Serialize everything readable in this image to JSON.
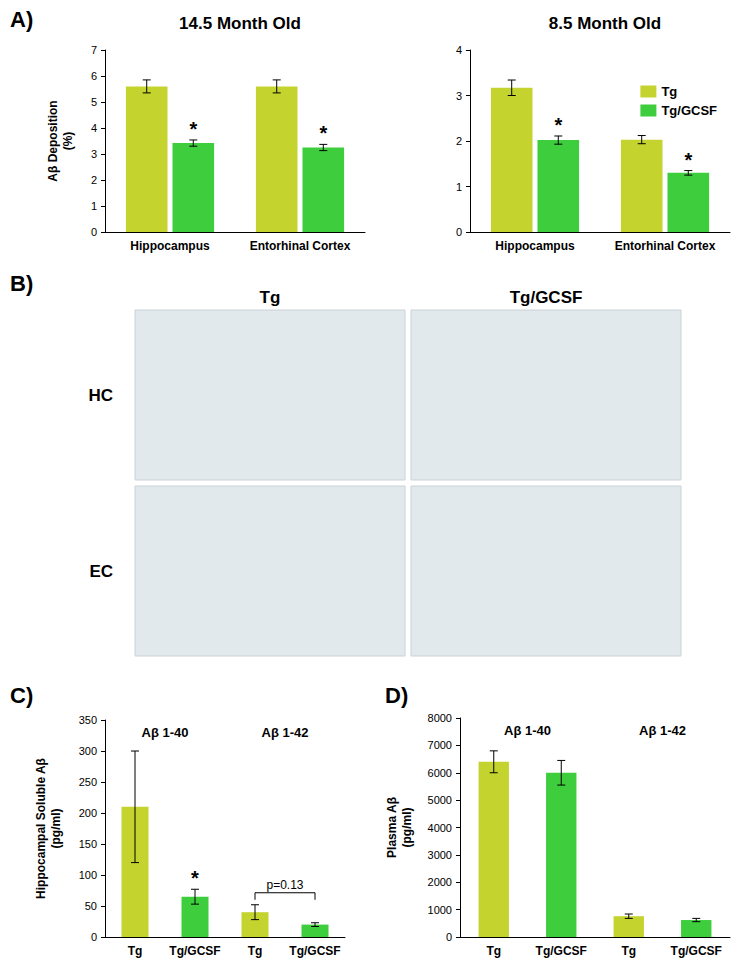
{
  "figure": {
    "panel_labels": [
      "A)",
      "B)",
      "C)",
      "D)"
    ],
    "panel_b": {
      "columns": [
        "Tg",
        "Tg/GCSF"
      ],
      "rows": [
        "HC",
        "EC"
      ]
    }
  },
  "chart_data": [
    {
      "type": "bar",
      "title": "14.5 Month Old",
      "y_label": "Aβ Deposition (%)",
      "categories": [
        "Hippocampus",
        "Entorhinal Cortex"
      ],
      "series": [
        {
          "name": "Tg",
          "color": "#c5d32e",
          "values": [
            5.6,
            5.6
          ],
          "errors": [
            0.25,
            0.25
          ]
        },
        {
          "name": "Tg/GCSF",
          "color": "#3dcd3d",
          "values": [
            3.42,
            3.25
          ],
          "errors": [
            0.12,
            0.12
          ]
        }
      ],
      "ylim": [
        0,
        7
      ],
      "yticks": [
        0,
        1,
        2,
        3,
        4,
        5,
        6,
        7
      ],
      "grid": false,
      "annotations": [
        {
          "text": "*",
          "series": "Tg/GCSF",
          "category": "Hippocampus"
        },
        {
          "text": "*",
          "series": "Tg/GCSF",
          "category": "Entorhinal Cortex"
        }
      ]
    },
    {
      "type": "bar",
      "title": "8.5 Month Old",
      "categories": [
        "Hippocampus",
        "Entorhinal Cortex"
      ],
      "series": [
        {
          "name": "Tg",
          "color": "#c5d32e",
          "values": [
            3.17,
            2.03
          ],
          "errors": [
            0.17,
            0.09
          ]
        },
        {
          "name": "Tg/GCSF",
          "color": "#3dcd3d",
          "values": [
            2.02,
            1.3
          ],
          "errors": [
            0.09,
            0.05
          ]
        }
      ],
      "ylim": [
        0,
        4
      ],
      "yticks": [
        0,
        1,
        2,
        3,
        4
      ],
      "grid": false,
      "legend": "upper right",
      "annotations": [
        {
          "text": "*",
          "series": "Tg/GCSF",
          "category": "Hippocampus"
        },
        {
          "text": "*",
          "series": "Tg/GCSF",
          "category": "Entorhinal Cortex"
        }
      ]
    },
    {
      "type": "bar",
      "y_label": "Hippocampal Soluble Aβ (pg/ml)",
      "categories": [
        "Tg",
        "Tg/GCSF",
        "Tg",
        "Tg/GCSF"
      ],
      "values": [
        210,
        65,
        40,
        20
      ],
      "errors": [
        90,
        12,
        12,
        3
      ],
      "colors": [
        "#c5d32e",
        "#3dcd3d",
        "#c5d32e",
        "#3dcd3d"
      ],
      "groups": [
        {
          "label": "Aβ 1-40",
          "from": 0,
          "to": 1
        },
        {
          "label": "Aβ 1-42",
          "from": 2,
          "to": 3
        }
      ],
      "ylim": [
        0,
        350
      ],
      "yticks": [
        0,
        50,
        100,
        150,
        200,
        250,
        300,
        350
      ],
      "grid": false,
      "annotations": [
        {
          "text": "*",
          "index": 1
        },
        {
          "text": "p=0.13",
          "from": 2,
          "to": 3
        }
      ]
    },
    {
      "type": "bar",
      "y_label": "Plasma Aβ (pg/ml)",
      "categories": [
        "Tg",
        "Tg/GCSF",
        "Tg",
        "Tg/GCSF"
      ],
      "values": [
        6400,
        6000,
        760,
        620
      ],
      "errors": [
        400,
        450,
        80,
        60
      ],
      "colors": [
        "#c5d32e",
        "#3dcd3d",
        "#c5d32e",
        "#3dcd3d"
      ],
      "groups": [
        {
          "label": "Aβ 1-40",
          "from": 0,
          "to": 1
        },
        {
          "label": "Aβ 1-42",
          "from": 2,
          "to": 3
        }
      ],
      "ylim": [
        0,
        8000
      ],
      "yticks": [
        0,
        1000,
        2000,
        3000,
        4000,
        5000,
        6000,
        7000,
        8000
      ],
      "grid": false
    }
  ]
}
